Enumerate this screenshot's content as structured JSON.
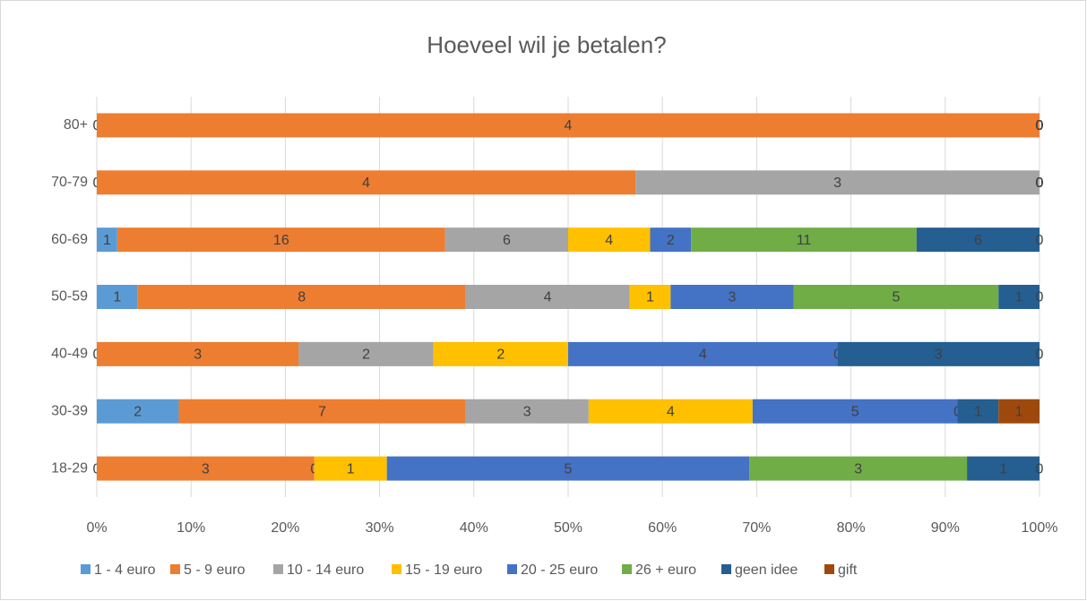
{
  "chart_data": {
    "type": "bar",
    "orientation": "horizontal",
    "stacking": "percent",
    "title": "Hoeveel wil je betalen?",
    "categories": [
      "18-29",
      "30-39",
      "40-49",
      "50-59",
      "60-69",
      "70-79",
      "80+"
    ],
    "series": [
      {
        "name": "1 - 4 euro",
        "color": "#5b9bd5",
        "values": [
          0,
          2,
          0,
          1,
          1,
          0,
          0
        ]
      },
      {
        "name": "5 - 9 euro",
        "color": "#ed7d31",
        "values": [
          3,
          7,
          3,
          8,
          16,
          4,
          4
        ]
      },
      {
        "name": "10 - 14 euro",
        "color": "#a5a5a5",
        "values": [
          0,
          3,
          2,
          4,
          6,
          3,
          0
        ]
      },
      {
        "name": "15 - 19 euro",
        "color": "#ffc000",
        "values": [
          1,
          4,
          2,
          1,
          4,
          0,
          0
        ]
      },
      {
        "name": "20 - 25 euro",
        "color": "#4472c4",
        "values": [
          5,
          5,
          4,
          3,
          2,
          0,
          0
        ]
      },
      {
        "name": "26 + euro",
        "color": "#70ad47",
        "values": [
          3,
          0,
          0,
          5,
          11,
          0,
          0
        ]
      },
      {
        "name": "geen idee",
        "color": "#255e91",
        "values": [
          1,
          1,
          3,
          1,
          6,
          0,
          0
        ]
      },
      {
        "name": "gift",
        "color": "#9e480e",
        "values": [
          0,
          1,
          0,
          0,
          0,
          0,
          0
        ]
      }
    ],
    "xlim": [
      0,
      100
    ],
    "xticks": [
      {
        "value": 0,
        "label": "0%"
      },
      {
        "value": 10,
        "label": "10%"
      },
      {
        "value": 20,
        "label": "20%"
      },
      {
        "value": 30,
        "label": "30%"
      },
      {
        "value": 40,
        "label": "40%"
      },
      {
        "value": 50,
        "label": "50%"
      },
      {
        "value": 60,
        "label": "60%"
      },
      {
        "value": 70,
        "label": "70%"
      },
      {
        "value": 80,
        "label": "80%"
      },
      {
        "value": 90,
        "label": "90%"
      },
      {
        "value": 100,
        "label": "100%"
      }
    ],
    "grid": true,
    "legend": "bottom"
  }
}
